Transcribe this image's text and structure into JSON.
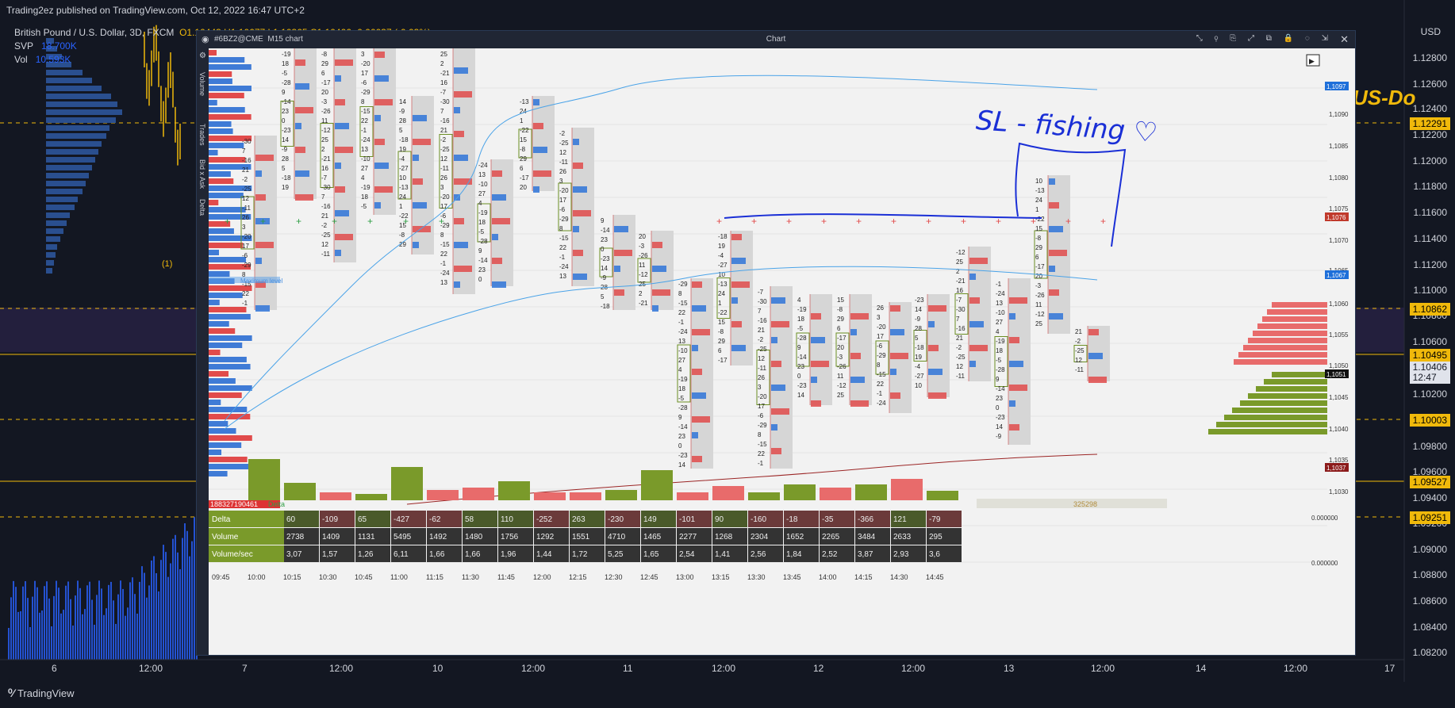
{
  "header": {
    "published": "Trading2ez published on TradingView.com, Oct 12, 2022 16:47 UTC+2",
    "symbol_line": "British Pound / U.S. Dollar, 3D, FXCM",
    "ohlc": "O1.10443  H1.10677  L1.10365  C1.10406  -0.00037 (-0.03%)",
    "svp_label": "SVP",
    "svp_value": "18.700K",
    "vol_label": "Vol",
    "vol_value": "10.593K",
    "currency": "USD",
    "marker": "(1)",
    "overlay_text": "US-Do"
  },
  "price_axis": {
    "ticks": [
      "1.12800",
      "1.12600",
      "1.12400",
      "1.12200",
      "1.12000",
      "1.11800",
      "1.11600",
      "1.11400",
      "1.11200",
      "1.11000",
      "1.10800",
      "1.10600",
      "1.10200",
      "1.10000",
      "1.09800",
      "1.09600",
      "1.09400",
      "1.09200",
      "1.09000",
      "1.08800",
      "1.08600",
      "1.08400",
      "1.08200"
    ],
    "badges": [
      {
        "label": "1.12291",
        "color": "#f0b90b"
      },
      {
        "label": "1.10862",
        "color": "#f0b90b"
      },
      {
        "label": "1.10495",
        "color": "#f0b90b"
      },
      {
        "label": "1.10003",
        "color": "#f0b90b"
      },
      {
        "label": "1.09527",
        "color": "#f0b90b"
      },
      {
        "label": "1.09251",
        "color": "#f0b90b"
      }
    ],
    "current": {
      "price": "1.10406",
      "countdown": "12:47"
    }
  },
  "time_axis": [
    "6",
    "12:00",
    "7",
    "12:00",
    "10",
    "12:00",
    "11",
    "12:00",
    "12",
    "12:00",
    "13",
    "12:00",
    "14",
    "12:00",
    "17"
  ],
  "footer": {
    "logo": "TradingView"
  },
  "chart_window": {
    "title": "Chart",
    "instrument": "#6BZ2@CME",
    "timeframe": "M15 chart",
    "side_tabs": [
      "Volume",
      "Trades",
      "Bid x Ask",
      "Delta"
    ],
    "price_ticks": [
      "1,1095",
      "1,1090",
      "1,1085",
      "1,1080",
      "1,1075",
      "1,1070",
      "1,1065",
      "1,1060",
      "1,1055",
      "1,1050",
      "1,1045",
      "1,1040",
      "1,1035",
      "1,1030"
    ],
    "price_badges": [
      {
        "label": "1,1097",
        "color": "#1e6fd9"
      },
      {
        "label": "1,1076",
        "color": "#c0392b"
      },
      {
        "label": "1,1067",
        "color": "#1e6fd9"
      },
      {
        "label": "1,1051",
        "color": "#111111"
      },
      {
        "label": "1,1037",
        "color": "#8b1a1a"
      }
    ],
    "max_label": "Maximum level",
    "cum_delta_left": "188327190461",
    "cum_delta_label": "Delta",
    "cum_total": "325298",
    "table_rows": [
      {
        "name": "Delta",
        "values": [
          "60",
          "-109",
          "65",
          "-427",
          "-62",
          "58",
          "110",
          "-252",
          "263",
          "-230",
          "149",
          "-101",
          "90",
          "-160",
          "-18",
          "-35",
          "-366",
          "121",
          "-79"
        ]
      },
      {
        "name": "Volume",
        "values": [
          "2738",
          "1409",
          "1131",
          "5495",
          "1492",
          "1480",
          "1756",
          "1292",
          "1551",
          "4710",
          "1465",
          "2277",
          "1268",
          "2304",
          "1652",
          "2265",
          "3484",
          "2633",
          "295"
        ]
      },
      {
        "name": "Volume/sec",
        "values": [
          "3,07",
          "1,57",
          "1,26",
          "6,11",
          "1,66",
          "1,66",
          "1,96",
          "1,44",
          "1,72",
          "5,25",
          "1,65",
          "2,54",
          "1,41",
          "2,56",
          "1,84",
          "2,52",
          "3,87",
          "2,93",
          "3,6"
        ]
      }
    ],
    "table_axis": [
      "0.000000",
      "0.000000"
    ],
    "time_ticks": [
      "09:45",
      "10:00",
      "10:15",
      "10:30",
      "10:45",
      "11:00",
      "11:15",
      "11:30",
      "11:45",
      "12:00",
      "12:15",
      "12:30",
      "12:45",
      "13:00",
      "13:15",
      "13:30",
      "13:45",
      "14:00",
      "14:15",
      "14:30",
      "14:45"
    ],
    "annotation": "SL - fishing ♡"
  }
}
